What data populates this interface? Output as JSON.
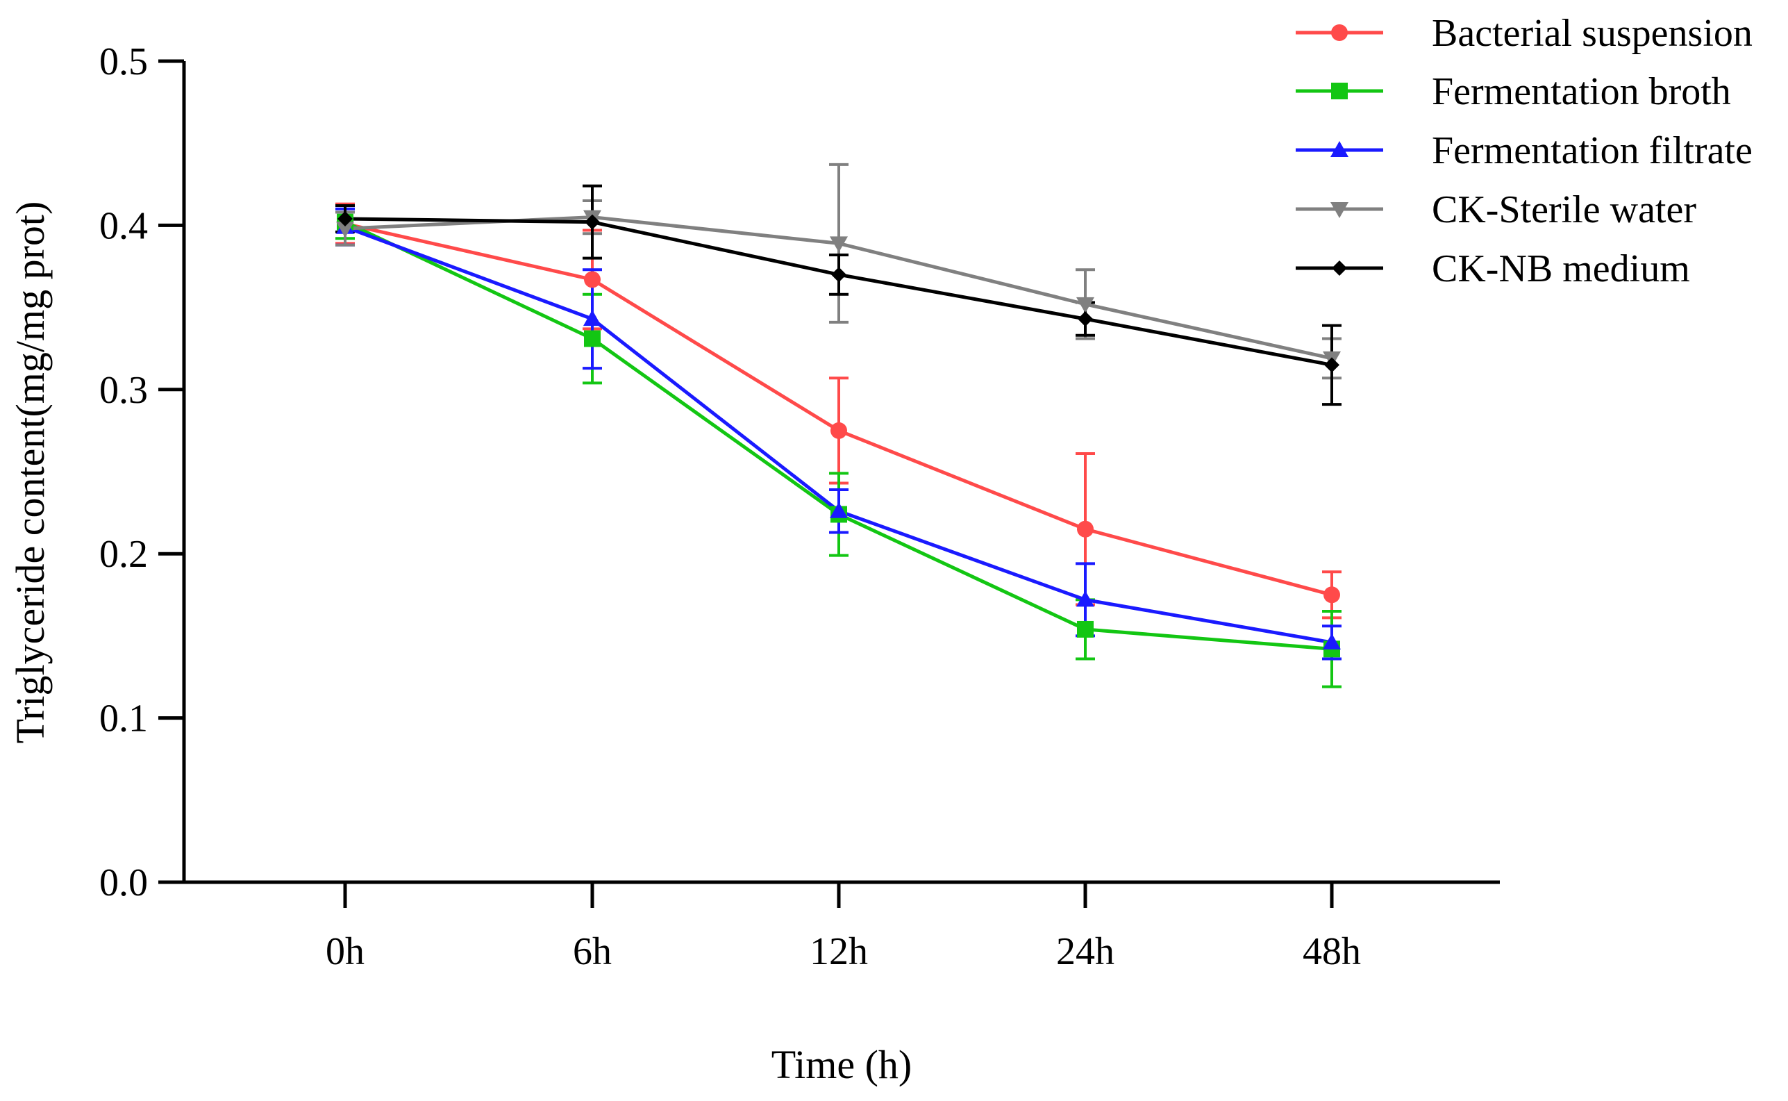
{
  "chart_data": {
    "type": "line",
    "title": "",
    "xlabel": "Time (h)",
    "ylabel": "Triglyceride content(mg/mg prot)",
    "categories": [
      "0h",
      "6h",
      "12h",
      "24h",
      "48h"
    ],
    "ylim": [
      0,
      0.5
    ],
    "yticks": [
      0.0,
      0.1,
      0.2,
      0.3,
      0.4,
      0.5
    ],
    "ytick_labels": [
      "0.0",
      "0.1",
      "0.2",
      "0.3",
      "0.4",
      "0.5"
    ],
    "grid": false,
    "legend_position": "top-right",
    "series": [
      {
        "name": "Bacterial suspension",
        "color": "#ff4a4a",
        "marker": "circle",
        "values": [
          0.401,
          0.367,
          0.275,
          0.215,
          0.175
        ],
        "errors": [
          0.012,
          0.03,
          0.032,
          0.046,
          0.014
        ]
      },
      {
        "name": "Fermentation broth",
        "color": "#13c613",
        "marker": "square",
        "values": [
          0.402,
          0.331,
          0.224,
          0.154,
          0.142
        ],
        "errors": [
          0.01,
          0.027,
          0.025,
          0.018,
          0.023
        ]
      },
      {
        "name": "Fermentation filtrate",
        "color": "#1a1aff",
        "marker": "triangle-up",
        "values": [
          0.399,
          0.343,
          0.226,
          0.172,
          0.146
        ],
        "errors": [
          0.011,
          0.03,
          0.013,
          0.022,
          0.01
        ]
      },
      {
        "name": "CK-Sterile water",
        "color": "#808080",
        "marker": "triangle-down",
        "values": [
          0.398,
          0.405,
          0.389,
          0.352,
          0.319
        ],
        "errors": [
          0.01,
          0.01,
          0.048,
          0.021,
          0.012
        ]
      },
      {
        "name": "CK-NB medium",
        "color": "#000000",
        "marker": "diamond",
        "values": [
          0.404,
          0.402,
          0.37,
          0.343,
          0.315
        ],
        "errors": [
          0.008,
          0.022,
          0.012,
          0.01,
          0.024
        ]
      }
    ]
  }
}
